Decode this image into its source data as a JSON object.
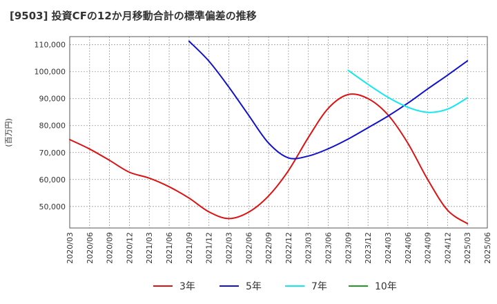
{
  "chart_data": {
    "type": "line",
    "title": "[9503]  投資CFの12か月移動合計の標準偏差の推移",
    "ylabel": "(百万円)",
    "xlabel": "",
    "ylim": [
      42000,
      113000
    ],
    "y_ticks": [
      50000,
      60000,
      70000,
      80000,
      90000,
      100000,
      110000
    ],
    "y_tick_labels": [
      "50,000",
      "60,000",
      "70,000",
      "80,000",
      "90,000",
      "100,000",
      "110,000"
    ],
    "x_tick_labels": [
      "2020/03",
      "2020/06",
      "2020/09",
      "2020/12",
      "2021/03",
      "2021/06",
      "2021/09",
      "2021/12",
      "2022/03",
      "2022/06",
      "2022/09",
      "2022/12",
      "2023/03",
      "2023/06",
      "2023/09",
      "2023/12",
      "2024/03",
      "2024/06",
      "2024/09",
      "2024/12",
      "2025/03",
      "2025/06"
    ],
    "grid": true,
    "legend_position": "bottom",
    "series": [
      {
        "name": "3年",
        "color": "#dd1111",
        "x": [
          "2020/03",
          "2020/06",
          "2020/09",
          "2020/12",
          "2021/03",
          "2021/06",
          "2021/09",
          "2021/12",
          "2022/03",
          "2022/06",
          "2022/09",
          "2022/12",
          "2023/03",
          "2023/06",
          "2023/09",
          "2023/12",
          "2024/03",
          "2024/06",
          "2024/09",
          "2024/12",
          "2025/03"
        ],
        "values": [
          74800,
          71300,
          67100,
          62700,
          60500,
          57300,
          53100,
          48000,
          45500,
          47900,
          53900,
          63300,
          75600,
          86400,
          91500,
          90000,
          84000,
          73500,
          60000,
          48600,
          43600
        ]
      },
      {
        "name": "5年",
        "color": "#1111cc",
        "x": [
          "2021/09",
          "2021/12",
          "2022/03",
          "2022/06",
          "2022/09",
          "2022/12",
          "2023/03",
          "2023/06",
          "2023/09",
          "2023/12",
          "2024/03",
          "2024/06",
          "2024/09",
          "2024/12",
          "2025/03"
        ],
        "values": [
          111300,
          103900,
          94300,
          83800,
          73500,
          68000,
          68700,
          71400,
          75000,
          79200,
          83500,
          88300,
          93600,
          98700,
          104000
        ]
      },
      {
        "name": "7年",
        "color": "#11e8ee",
        "x": [
          "2023/09",
          "2023/12",
          "2024/03",
          "2024/06",
          "2024/09",
          "2024/12",
          "2025/03"
        ],
        "values": [
          100500,
          95300,
          90500,
          86800,
          84900,
          86100,
          90300
        ]
      },
      {
        "name": "10年",
        "color": "#229922",
        "x": [],
        "values": []
      }
    ]
  }
}
